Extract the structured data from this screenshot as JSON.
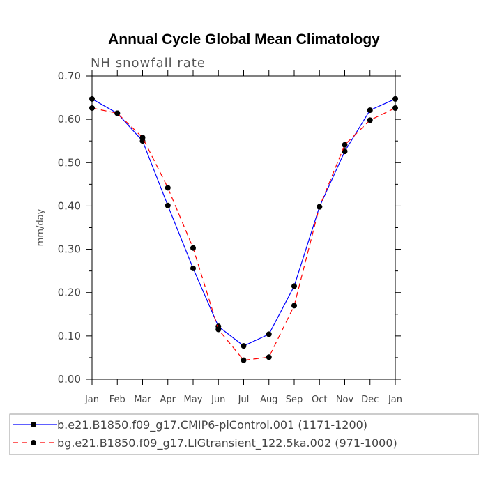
{
  "chart_data": {
    "type": "line",
    "title": "Annual Cycle Global Mean Climatology",
    "subtitle": "NH snowfall rate",
    "xlabel": "",
    "ylabel": "mm/day",
    "ylim": [
      0,
      0.7
    ],
    "yticks": [
      "0.00",
      "0.10",
      "0.20",
      "0.30",
      "0.40",
      "0.50",
      "0.60",
      "0.70"
    ],
    "categories": [
      "Jan",
      "Feb",
      "Mar",
      "Apr",
      "May",
      "Jun",
      "Jul",
      "Aug",
      "Sep",
      "Oct",
      "Nov",
      "Dec",
      "Jan"
    ],
    "series": [
      {
        "name": "b.e21.B1850.f09_g17.CMIP6-piControl.001 (1171-1200)",
        "color": "#0000ff",
        "dash": "solid",
        "values": [
          0.647,
          0.614,
          0.55,
          0.401,
          0.256,
          0.122,
          0.077,
          0.104,
          0.215,
          0.398,
          0.526,
          0.621,
          0.647
        ]
      },
      {
        "name": "bg.e21.B1850.f09_g17.LIGtransient_122.5ka.002 (971-1000)",
        "color": "#ff0000",
        "dash": "dashed",
        "values": [
          0.626,
          0.614,
          0.558,
          0.442,
          0.303,
          0.115,
          0.044,
          0.051,
          0.17,
          0.398,
          0.541,
          0.598,
          0.626
        ]
      }
    ],
    "legend_position": "bottom"
  }
}
